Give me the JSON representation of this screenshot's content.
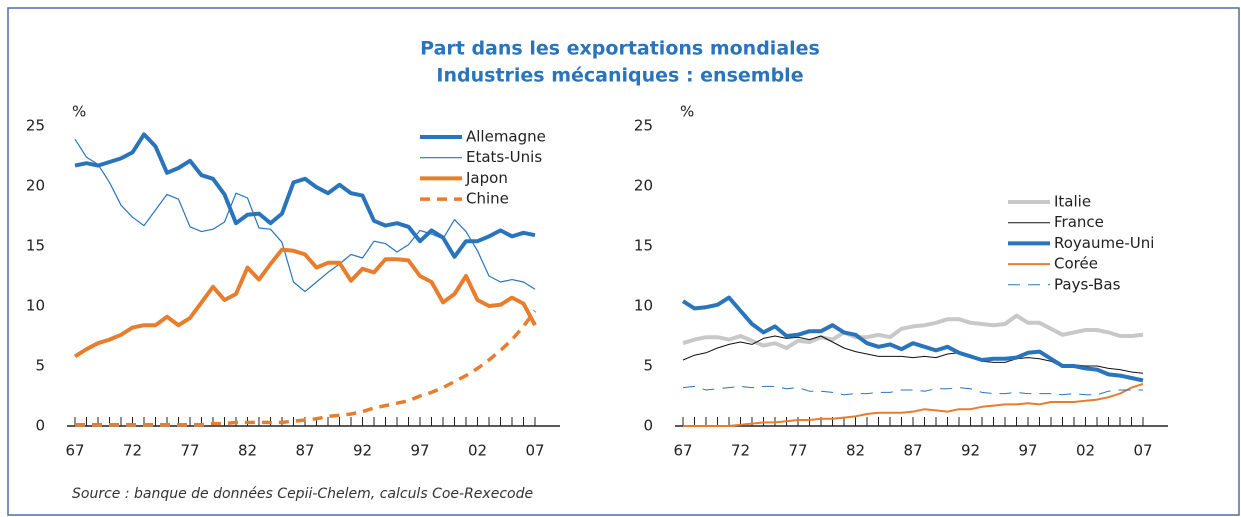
{
  "title": "Part dans les exportations mondiales",
  "subtitle": "Industries mécaniques : ensemble",
  "source": "Source : banque de données Cepii-Chelem, calculs Coe-Rexecode",
  "chart_data": [
    {
      "type": "line",
      "y_label": "%",
      "legend": "upper right",
      "categories": [
        "67",
        null,
        null,
        null,
        null,
        "72",
        null,
        null,
        null,
        null,
        "77",
        null,
        null,
        null,
        null,
        "82",
        null,
        null,
        null,
        null,
        "87",
        null,
        null,
        null,
        null,
        "92",
        null,
        null,
        null,
        null,
        "97",
        null,
        null,
        null,
        null,
        "02",
        null,
        null,
        null,
        null,
        "07"
      ],
      "ylim": [
        0,
        25
      ],
      "yticks": [
        0,
        5,
        10,
        15,
        20,
        25
      ],
      "series": [
        {
          "name": "Allemagne",
          "color": "#2a74bb",
          "width": 4,
          "style": "solid",
          "values": [
            21.7,
            21.9,
            21.7,
            22.0,
            22.3,
            22.8,
            24.3,
            23.3,
            21.1,
            21.5,
            22.1,
            20.9,
            20.6,
            19.3,
            16.9,
            17.6,
            17.7,
            16.9,
            17.7,
            20.3,
            20.6,
            19.9,
            19.4,
            20.1,
            19.4,
            19.2,
            17.1,
            16.7,
            16.9,
            16.6,
            15.4,
            16.3,
            15.7,
            14.1,
            15.4,
            15.4,
            15.8,
            16.3,
            15.8,
            16.1,
            15.9
          ]
        },
        {
          "name": "Etats-Unis",
          "color": "#2a74bb",
          "width": 1.2,
          "style": "solid",
          "values": [
            23.9,
            22.4,
            21.8,
            20.3,
            18.4,
            17.4,
            16.7,
            18.0,
            19.3,
            18.9,
            16.6,
            16.2,
            16.4,
            17.0,
            19.4,
            19.0,
            16.5,
            16.4,
            15.3,
            12.0,
            11.2,
            12.0,
            12.8,
            13.5,
            14.3,
            14.0,
            15.4,
            15.2,
            14.5,
            15.1,
            16.3,
            16.0,
            15.6,
            17.2,
            16.2,
            14.6,
            12.5,
            12.0,
            12.2,
            12.0,
            11.4
          ]
        },
        {
          "name": "Japon",
          "color": "#e87d2e",
          "width": 4,
          "style": "solid",
          "values": [
            5.8,
            6.4,
            6.9,
            7.2,
            7.6,
            8.2,
            8.4,
            8.4,
            9.1,
            8.4,
            9.0,
            10.3,
            11.6,
            10.5,
            11.0,
            13.2,
            12.2,
            13.5,
            14.7,
            14.6,
            14.3,
            13.2,
            13.6,
            13.6,
            12.1,
            13.1,
            12.8,
            13.9,
            13.9,
            13.8,
            12.5,
            12.0,
            10.3,
            11.0,
            12.5,
            10.5,
            10.0,
            10.1,
            10.7,
            10.2,
            8.4
          ]
        },
        {
          "name": "Chine",
          "color": "#e87d2e",
          "width": 3.5,
          "style": "dashed",
          "values": [
            0.1,
            0.1,
            0.1,
            0.1,
            0.1,
            0.1,
            0.1,
            0.1,
            0.1,
            0.1,
            0.1,
            0.1,
            0.2,
            0.2,
            0.3,
            0.3,
            0.3,
            0.3,
            0.3,
            0.4,
            0.5,
            0.6,
            0.8,
            0.9,
            1.0,
            1.2,
            1.5,
            1.7,
            1.9,
            2.1,
            2.5,
            2.8,
            3.2,
            3.7,
            4.2,
            4.8,
            5.5,
            6.3,
            7.2,
            8.3,
            9.6
          ]
        }
      ]
    },
    {
      "type": "line",
      "y_label": "%",
      "legend": "center right",
      "categories": [
        "67",
        null,
        null,
        null,
        null,
        "72",
        null,
        null,
        null,
        null,
        "77",
        null,
        null,
        null,
        null,
        "82",
        null,
        null,
        null,
        null,
        "87",
        null,
        null,
        null,
        null,
        "92",
        null,
        null,
        null,
        null,
        "97",
        null,
        null,
        null,
        null,
        "02",
        null,
        null,
        null,
        null,
        "07"
      ],
      "ylim": [
        0,
        25
      ],
      "yticks": [
        0,
        5,
        10,
        15,
        20,
        25
      ],
      "series": [
        {
          "name": "Italie",
          "color": "#c8c8c8",
          "width": 4,
          "style": "solid",
          "values": [
            6.9,
            7.2,
            7.4,
            7.4,
            7.2,
            7.5,
            7.1,
            6.7,
            6.9,
            6.5,
            7.1,
            7.0,
            7.4,
            7.2,
            7.8,
            7.4,
            7.4,
            7.6,
            7.4,
            8.1,
            8.3,
            8.4,
            8.6,
            8.9,
            8.9,
            8.6,
            8.5,
            8.4,
            8.5,
            9.2,
            8.6,
            8.6,
            8.1,
            7.6,
            7.8,
            8.0,
            8.0,
            7.8,
            7.5,
            7.5,
            7.6
          ]
        },
        {
          "name": "France",
          "color": "#111111",
          "width": 1,
          "style": "solid",
          "values": [
            5.5,
            5.9,
            6.1,
            6.5,
            6.8,
            7.0,
            6.8,
            7.3,
            7.5,
            7.3,
            7.4,
            7.2,
            7.5,
            7.0,
            6.5,
            6.2,
            6.0,
            5.8,
            5.8,
            5.8,
            5.7,
            5.8,
            5.7,
            6.0,
            6.1,
            5.8,
            5.4,
            5.3,
            5.3,
            5.6,
            5.7,
            5.6,
            5.4,
            4.9,
            5.1,
            5.0,
            5.0,
            4.8,
            4.7,
            4.5,
            4.4
          ]
        },
        {
          "name": "Royaume-Uni",
          "color": "#2a74bb",
          "width": 4,
          "style": "solid",
          "values": [
            10.4,
            9.8,
            9.9,
            10.1,
            10.7,
            9.6,
            8.5,
            7.8,
            8.3,
            7.5,
            7.6,
            7.9,
            7.9,
            8.4,
            7.8,
            7.6,
            6.9,
            6.6,
            6.8,
            6.4,
            6.9,
            6.6,
            6.3,
            6.6,
            6.1,
            5.8,
            5.5,
            5.6,
            5.6,
            5.7,
            6.1,
            6.2,
            5.6,
            5.0,
            5.0,
            4.8,
            4.7,
            4.3,
            4.2,
            4.0,
            3.8
          ]
        },
        {
          "name": "Corée",
          "color": "#e87d2e",
          "width": 2,
          "style": "solid",
          "values": [
            0,
            0,
            0,
            0,
            0,
            0.1,
            0.2,
            0.3,
            0.3,
            0.4,
            0.5,
            0.5,
            0.6,
            0.6,
            0.7,
            0.8,
            1.0,
            1.1,
            1.1,
            1.1,
            1.2,
            1.4,
            1.3,
            1.2,
            1.4,
            1.4,
            1.6,
            1.7,
            1.8,
            1.8,
            1.9,
            1.8,
            2.0,
            2.0,
            2.0,
            2.1,
            2.2,
            2.4,
            2.7,
            3.2,
            3.5
          ]
        },
        {
          "name": "Pays-Bas",
          "color": "#2a74bb",
          "width": 1,
          "style": "dashed",
          "values": [
            3.2,
            3.3,
            3.0,
            3.1,
            3.2,
            3.3,
            3.2,
            3.3,
            3.3,
            3.1,
            3.2,
            2.9,
            2.9,
            2.8,
            2.6,
            2.7,
            2.7,
            2.8,
            2.8,
            3.0,
            3.0,
            2.9,
            3.1,
            3.1,
            3.2,
            3.1,
            2.8,
            2.7,
            2.7,
            2.8,
            2.7,
            2.7,
            2.7,
            2.6,
            2.7,
            2.6,
            2.6,
            2.9,
            3.0,
            3.0,
            3.0
          ]
        }
      ]
    }
  ]
}
